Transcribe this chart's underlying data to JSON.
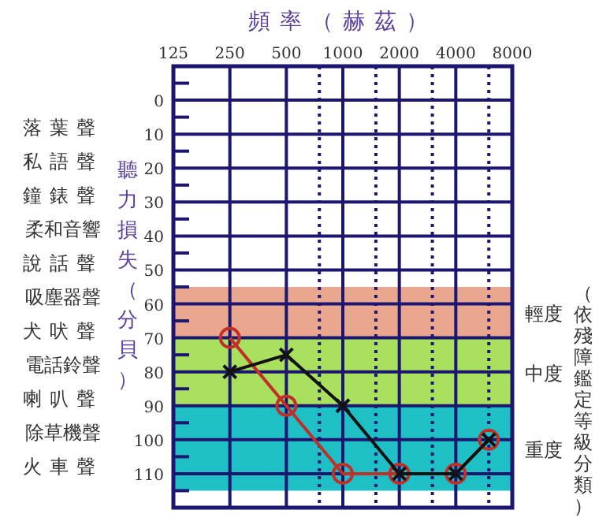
{
  "chart_data": {
    "type": "line",
    "xlabel": "頻率（赫茲）",
    "ylabel": "聽力損失（分貝）",
    "log": "x",
    "xlim": [
      125,
      8000
    ],
    "xticks": [
      125,
      250,
      500,
      {
        "value": 750,
        "label": null
      },
      1000,
      {
        "value": 1500,
        "label": null
      },
      2000,
      {
        "value": 3000,
        "label": null
      },
      4000,
      {
        "value": 6000,
        "label": null
      },
      8000
    ],
    "ylim": [
      120,
      -10
    ],
    "yticks": [
      {
        "value": -5,
        "label": null
      },
      0,
      {
        "value": 5,
        "label": null
      },
      10,
      {
        "value": 15,
        "label": null
      },
      20,
      {
        "value": 25,
        "label": null
      },
      30,
      {
        "value": 35,
        "label": null
      },
      40,
      {
        "value": 45,
        "label": null
      },
      50,
      {
        "value": 55,
        "label": null
      },
      60,
      {
        "value": 65,
        "label": null
      },
      70,
      {
        "value": 75,
        "label": null
      },
      80,
      {
        "value": 85,
        "label": null
      },
      90,
      {
        "value": 95,
        "label": null
      },
      100,
      {
        "value": 105,
        "label": null
      },
      110,
      {
        "value": 115,
        "label": null
      }
    ],
    "grid": true,
    "line_style": "solid",
    "x": [
      250,
      500,
      1000,
      2000,
      4000,
      6000
    ],
    "series": [
      {
        "color": "#c0302a",
        "marker": "circle",
        "values": [
          70,
          90,
          110,
          110,
          110,
          100
        ]
      },
      {
        "color": "#111111",
        "marker": "cross",
        "values": [
          80,
          75,
          90,
          110,
          110,
          100
        ]
      }
    ],
    "bands": [
      {
        "axis": "y",
        "from": 55,
        "to": 70,
        "label": "輕度",
        "color": "#e8a78e"
      },
      {
        "axis": "y",
        "from": 70,
        "to": 90,
        "label": "中度",
        "color": "#a9e05e"
      },
      {
        "axis": "y",
        "from": 90,
        "to": 115,
        "label": "重度",
        "color": "#1fbfc6"
      }
    ],
    "annotations": [
      "落葉聲",
      "私語聲",
      "鐘錶聲",
      "柔和音響",
      "說話聲",
      "吸塵器聲",
      "犬吠聲",
      "電話鈴聲",
      "喇叭聲",
      "除草機聲",
      "火車聲",
      "（依殘障鑑定等級分類）"
    ]
  }
}
